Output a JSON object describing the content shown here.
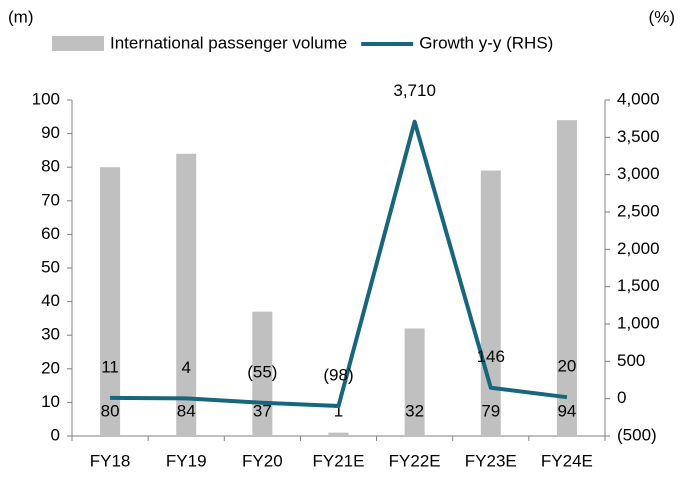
{
  "chart_data": {
    "type": "bar_line",
    "ylabel": "(m)",
    "y2label": "(%)",
    "categories": [
      "FY18",
      "FY19",
      "FY20",
      "FY21E",
      "FY22E",
      "FY23E",
      "FY24E"
    ],
    "series": [
      {
        "name": "International passenger volume",
        "type": "bar",
        "color": "#c0c0c0",
        "values": [
          80,
          84,
          37,
          1,
          32,
          79,
          94
        ]
      },
      {
        "name": "Growth y-y (RHS)",
        "type": "line",
        "axis": "y2",
        "color": "#17667d",
        "values": [
          11,
          4,
          -55,
          -98,
          3710,
          146,
          20
        ],
        "value_labels": [
          "11",
          "4",
          "(55)",
          "(98)",
          "3,710",
          "146",
          "20"
        ]
      }
    ],
    "ylim": [
      0,
      100
    ],
    "yticks": [
      0,
      10,
      20,
      30,
      40,
      50,
      60,
      70,
      80,
      90,
      100
    ],
    "y2lim": [
      -500,
      4000
    ],
    "y2ticks": [
      {
        "value": -500,
        "label": "(500)"
      },
      0,
      500,
      {
        "value": 1000,
        "label": "1,000"
      },
      {
        "value": 1500,
        "label": "1,500"
      },
      {
        "value": 2000,
        "label": "2,000"
      },
      {
        "value": 2500,
        "label": "2,500"
      },
      {
        "value": 3000,
        "label": "3,000"
      },
      {
        "value": 3500,
        "label": "3,500"
      },
      {
        "value": 4000,
        "label": "4,000"
      }
    ],
    "legend": "top",
    "grid": false
  }
}
